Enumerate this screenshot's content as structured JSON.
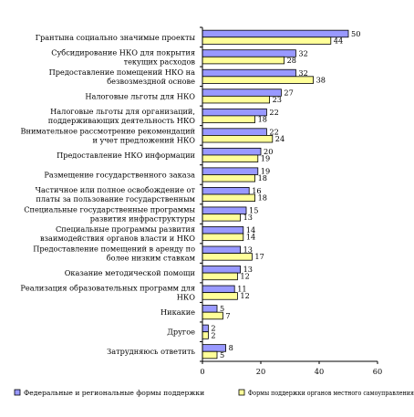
{
  "chart_data": {
    "type": "bar",
    "orientation": "horizontal",
    "title": "",
    "xlabel": "",
    "ylabel": "",
    "xlim": [
      0,
      60
    ],
    "x_ticks": [
      "0",
      "20",
      "40",
      "60"
    ],
    "grid": false,
    "legend_placement": "bottom",
    "categories": [
      [
        "Грантына социально значимые проекты"
      ],
      [
        "Субсидирование НКО для покрытия",
        "текущих расходов"
      ],
      [
        "Предоставление помещений НКО на",
        "безвозмездной основе"
      ],
      [
        "Налоговые льготы для НКО"
      ],
      [
        "Налоговые льготы для организаций,",
        "поддерживающих деятельность НКО"
      ],
      [
        "Внимательное рассмотрение рекомендаций",
        "и учет предложений НКО"
      ],
      [
        "Предоставление НКО информации"
      ],
      [
        "Размещение государственного заказа"
      ],
      [
        "Частичное или полное освобождение от",
        "платы за пользование государственным"
      ],
      [
        "Специальные государственные программы",
        "развития инфраструктуры"
      ],
      [
        "Специальные программы развития",
        "взаимодействия органов власти и НКО"
      ],
      [
        "Предоставление помещений в аренду по",
        "более низким ставкам"
      ],
      [
        "Оказание методической помощи"
      ],
      [
        "Реализация образовательных программ для",
        "НКО"
      ],
      [
        "Никакие"
      ],
      [
        "Другое"
      ],
      [
        "Затрудняюсь ответить"
      ]
    ],
    "series": [
      {
        "name": "Федеральные и региональные формы поддержки",
        "color": "#9999ff",
        "values": [
          50,
          32,
          32,
          27,
          22,
          22,
          20,
          19,
          16,
          15,
          14,
          13,
          13,
          11,
          5,
          2,
          8
        ]
      },
      {
        "name": "Формы поддержки органов местного самоуправления",
        "color": "#ffff99",
        "values": [
          44,
          28,
          38,
          23,
          18,
          24,
          19,
          18,
          18,
          13,
          14,
          17,
          12,
          12,
          7,
          2,
          5
        ]
      }
    ]
  }
}
